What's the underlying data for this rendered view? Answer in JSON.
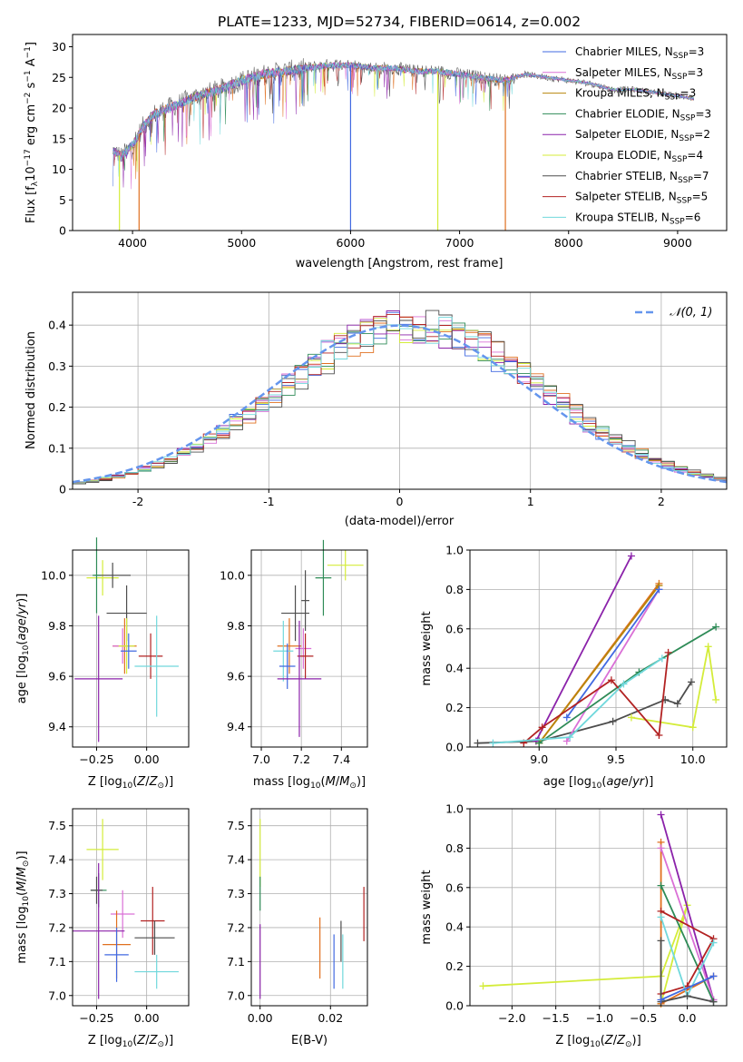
{
  "colors": {
    "chabrier_miles": "#4169e1",
    "salpeter_miles": "#da70d6",
    "kroupa_miles": "#b8860b",
    "chabrier_elodie": "#2e8b57",
    "salpeter_elodie": "#8b22aa",
    "kroupa_elodie": "#d4ec3a",
    "chabrier_stelib": "#4d4d4d",
    "salpeter_stelib": "#b22222",
    "kroupa_stelib": "#70d8dc",
    "orange": "#e07020",
    "normal": "#6495ed"
  },
  "chart_data": [
    {
      "type": "line",
      "title": "PLATE=1233, MJD=52734, FIBERID=0614, z=0.002",
      "xlabel": "wavelength [Angstrom, rest frame]",
      "ylabel": "Flux [fλ10⁻¹⁷ erg cm⁻² s⁻¹ A⁻¹]",
      "xlim": [
        3450,
        9450
      ],
      "ylim": [
        0,
        32
      ],
      "xticks": [
        4000,
        5000,
        6000,
        7000,
        8000,
        9000
      ],
      "yticks": [
        0,
        5,
        10,
        15,
        20,
        25,
        30
      ],
      "grid": false,
      "legend": "upper right",
      "continuum": {
        "x": [
          3820,
          3900,
          4000,
          4100,
          4200,
          4400,
          4600,
          4800,
          5000,
          5200,
          5400,
          5600,
          5800,
          6000,
          6200,
          6400,
          6600,
          6800,
          7000,
          7200,
          7400,
          7600,
          7800,
          8000,
          8200,
          8400,
          8600,
          8800,
          9000,
          9150
        ],
        "y": [
          13,
          12,
          14,
          17,
          19,
          20.5,
          22,
          23,
          24.5,
          25.5,
          26,
          26.5,
          27,
          27,
          26.5,
          26.5,
          26,
          26,
          25.5,
          25,
          24.5,
          25.5,
          25,
          24.5,
          24,
          23,
          23,
          22.5,
          22,
          21.5
        ]
      },
      "series": [
        {
          "name": "Chabrier MILES, N<sub>SSP</sub>=3",
          "color": "chabrier_miles"
        },
        {
          "name": "Salpeter MILES, N<sub>SSP</sub>=3",
          "color": "salpeter_miles"
        },
        {
          "name": "Kroupa MILES, N<sub>SSP</sub>=3",
          "color": "kroupa_miles"
        },
        {
          "name": "Chabrier ELODIE, N<sub>SSP</sub>=3",
          "color": "chabrier_elodie"
        },
        {
          "name": "Salpeter ELODIE, N<sub>SSP</sub>=2",
          "color": "salpeter_elodie"
        },
        {
          "name": "Kroupa ELODIE, N<sub>SSP</sub>=4",
          "color": "kroupa_elodie"
        },
        {
          "name": "Chabrier STELIB, N<sub>SSP</sub>=7",
          "color": "chabrier_stelib"
        },
        {
          "name": "Salpeter STELIB, N<sub>SSP</sub>=5",
          "color": "salpeter_stelib"
        },
        {
          "name": "Kroupa STELIB, N<sub>SSP</sub>=6",
          "color": "kroupa_stelib"
        }
      ],
      "dropouts": [
        {
          "x": 3880,
          "color": "kroupa_elodie"
        },
        {
          "x": 4060,
          "color": "orange"
        },
        {
          "x": 6000,
          "color": "chabrier_miles"
        },
        {
          "x": 6800,
          "color": "kroupa_elodie"
        },
        {
          "x": 7420,
          "color": "orange"
        }
      ]
    },
    {
      "type": "step",
      "xlabel": "(data-model)/error",
      "ylabel": "Normed distribution",
      "xlim": [
        -2.5,
        2.5
      ],
      "ylim": [
        0,
        0.48
      ],
      "xticks": [
        -2,
        -1,
        0,
        1,
        2
      ],
      "yticks": [
        0.0,
        0.1,
        0.2,
        0.3,
        0.4
      ],
      "grid": true,
      "legend": "upper right",
      "legend_label": "𝒩(0, 1)",
      "bin_width": 0.1,
      "hist_colors": [
        "chabrier_miles",
        "salpeter_miles",
        "orange",
        "chabrier_elodie",
        "salpeter_elodie",
        "kroupa_elodie",
        "chabrier_stelib",
        "salpeter_stelib",
        "kroupa_stelib"
      ],
      "normal": {
        "mu": 0,
        "sigma": 1
      }
    },
    {
      "type": "errorbar",
      "xlabel": "Z [log<sub>10</sub>(<i>Z</i>/<i>Z</i><sub>⊙</sub>)]",
      "ylabel": "age  [log<sub>10</sub>(<i>age</i>/<i>yr</i>)]",
      "xlim": [
        -0.37,
        0.21
      ],
      "ylim": [
        9.32,
        10.1
      ],
      "xticks": [
        -0.25,
        0.0
      ],
      "xtick_labels": [
        "−0.25",
        "0.00"
      ],
      "yticks": [
        9.4,
        9.6,
        9.8,
        10.0
      ],
      "ytick_labels": [
        "9.4",
        "9.6",
        "9.8",
        "10.0"
      ],
      "grid": true,
      "points": [
        {
          "x": -0.22,
          "y": 9.99,
          "xerr": 0.08,
          "yerr": 0.07,
          "color": "kroupa_elodie"
        },
        {
          "x": -0.17,
          "y": 10.0,
          "xerr": 0.09,
          "yerr": 0.05,
          "color": "chabrier_stelib"
        },
        {
          "x": -0.25,
          "y": 10.0,
          "xerr": 0.02,
          "yerr": 0.15,
          "color": "chabrier_elodie"
        },
        {
          "x": -0.1,
          "y": 9.85,
          "xerr": 0.1,
          "yerr": 0.11,
          "color": "chabrier_stelib"
        },
        {
          "x": -0.11,
          "y": 9.72,
          "xerr": 0.06,
          "yerr": 0.11,
          "color": "orange"
        },
        {
          "x": -0.12,
          "y": 9.72,
          "xerr": 0.05,
          "yerr": 0.07,
          "color": "salpeter_miles"
        },
        {
          "x": -0.1,
          "y": 9.72,
          "xerr": 0.04,
          "yerr": 0.11,
          "color": "kroupa_elodie"
        },
        {
          "x": 0.02,
          "y": 9.68,
          "xerr": 0.06,
          "yerr": 0.09,
          "color": "salpeter_stelib"
        },
        {
          "x": 0.05,
          "y": 9.64,
          "xerr": 0.11,
          "yerr": 0.2,
          "color": "kroupa_stelib"
        },
        {
          "x": -0.24,
          "y": 9.59,
          "xerr": 0.12,
          "yerr": 0.25,
          "color": "salpeter_elodie"
        },
        {
          "x": -0.09,
          "y": 9.7,
          "xerr": 0.04,
          "yerr": 0.07,
          "color": "chabrier_miles"
        }
      ]
    },
    {
      "type": "errorbar",
      "xlabel": "mass [log<sub>10</sub>(<i>M</i>/<i>M</i><sub>⊙</sub>)]",
      "ylabel": "",
      "xlim": [
        6.95,
        7.53
      ],
      "ylim": [
        9.32,
        10.1
      ],
      "xticks": [
        7.0,
        7.2,
        7.4
      ],
      "xtick_labels": [
        "7.0",
        "7.2",
        "7.4"
      ],
      "yticks": [
        9.4,
        9.6,
        9.8,
        10.0
      ],
      "ytick_labels": [
        "9.4",
        "9.6",
        "9.8",
        "10.0"
      ],
      "grid": true,
      "points": [
        {
          "x": 7.42,
          "y": 10.04,
          "xerr": 0.09,
          "yerr": 0.06,
          "color": "kroupa_elodie"
        },
        {
          "x": 7.31,
          "y": 9.99,
          "xerr": 0.04,
          "yerr": 0.15,
          "color": "chabrier_elodie"
        },
        {
          "x": 7.22,
          "y": 9.9,
          "xerr": 0.02,
          "yerr": 0.12,
          "color": "chabrier_stelib"
        },
        {
          "x": 7.17,
          "y": 9.85,
          "xerr": 0.07,
          "yerr": 0.11,
          "color": "chabrier_stelib"
        },
        {
          "x": 7.14,
          "y": 9.72,
          "xerr": 0.06,
          "yerr": 0.11,
          "color": "orange"
        },
        {
          "x": 7.21,
          "y": 9.71,
          "xerr": 0.04,
          "yerr": 0.08,
          "color": "salpeter_miles"
        },
        {
          "x": 7.22,
          "y": 9.68,
          "xerr": 0.04,
          "yerr": 0.09,
          "color": "salpeter_stelib"
        },
        {
          "x": 7.11,
          "y": 9.7,
          "xerr": 0.05,
          "yerr": 0.12,
          "color": "kroupa_stelib"
        },
        {
          "x": 7.13,
          "y": 9.64,
          "xerr": 0.04,
          "yerr": 0.09,
          "color": "chabrier_miles"
        },
        {
          "x": 7.19,
          "y": 9.59,
          "xerr": 0.11,
          "yerr": 0.23,
          "color": "salpeter_elodie"
        }
      ]
    },
    {
      "type": "line",
      "xlabel": "age  [log<sub>10</sub>(<i>age</i>/<i>yr</i>)]",
      "ylabel": "mass weight",
      "xlim": [
        8.55,
        10.22
      ],
      "ylim": [
        0,
        1
      ],
      "xticks": [
        9.0,
        9.5,
        10.0
      ],
      "xtick_labels": [
        "9.0",
        "9.5",
        "10.0"
      ],
      "yticks": [
        0.0,
        0.2,
        0.4,
        0.6,
        0.8,
        1.0
      ],
      "ytick_labels": [
        "0.0",
        "0.2",
        "0.4",
        "0.6",
        "0.8",
        "1.0"
      ],
      "grid": true,
      "series": [
        {
          "color": "chabrier_stelib",
          "x": [
            8.6,
            9.0,
            9.48,
            9.82,
            9.9,
            9.99
          ],
          "y": [
            0.02,
            0.03,
            0.13,
            0.24,
            0.22,
            0.33
          ]
        },
        {
          "color": "kroupa_elodie",
          "x": [
            9.6,
            10.0,
            10.1,
            10.15
          ],
          "y": [
            0.15,
            0.1,
            0.51,
            0.24
          ]
        },
        {
          "color": "salpeter_elodie",
          "x": [
            8.98,
            9.6
          ],
          "y": [
            0.03,
            0.97
          ]
        },
        {
          "color": "orange",
          "x": [
            9.0,
            9.78
          ],
          "y": [
            0.02,
            0.83
          ]
        },
        {
          "color": "salpeter_miles",
          "x": [
            9.18,
            9.78
          ],
          "y": [
            0.03,
            0.8
          ]
        },
        {
          "color": "kroupa_miles",
          "x": [
            9.0,
            9.78
          ],
          "y": [
            0.02,
            0.82
          ]
        },
        {
          "color": "chabrier_miles",
          "x": [
            9.18,
            9.78
          ],
          "y": [
            0.15,
            0.8
          ]
        },
        {
          "color": "chabrier_elodie",
          "x": [
            9.0,
            9.65,
            10.15
          ],
          "y": [
            0.02,
            0.38,
            0.61
          ]
        },
        {
          "color": "salpeter_stelib",
          "x": [
            8.9,
            9.02,
            9.47,
            9.78,
            9.84
          ],
          "y": [
            0.02,
            0.1,
            0.34,
            0.06,
            0.48
          ]
        },
        {
          "color": "kroupa_stelib",
          "x": [
            8.7,
            9.2,
            9.55,
            9.8
          ],
          "y": [
            0.02,
            0.05,
            0.32,
            0.45
          ]
        }
      ]
    },
    {
      "type": "errorbar",
      "xlabel": "Z [log<sub>10</sub>(<i>Z</i>/<i>Z</i><sub>⊙</sub>)]",
      "ylabel": "mass [log<sub>10</sub>(<i>M</i>/<i>M</i><sub>⊙</sub>)]",
      "xlim": [
        -0.37,
        0.21
      ],
      "ylim": [
        6.97,
        7.55
      ],
      "xticks": [
        -0.25,
        0.0
      ],
      "xtick_labels": [
        "−0.25",
        "0.00"
      ],
      "yticks": [
        7.0,
        7.1,
        7.2,
        7.3,
        7.4,
        7.5
      ],
      "ytick_labels": [
        "7.0",
        "7.1",
        "7.2",
        "7.3",
        "7.4",
        "7.5"
      ],
      "grid": true,
      "points": [
        {
          "x": -0.22,
          "y": 7.43,
          "xerr": 0.08,
          "yerr": 0.09,
          "color": "kroupa_elodie"
        },
        {
          "x": -0.24,
          "y": 7.31,
          "xerr": 0.04,
          "yerr": 0.05,
          "color": "chabrier_elodie"
        },
        {
          "x": -0.25,
          "y": 7.31,
          "xerr": 0.03,
          "yerr": 0.04,
          "color": "chabrier_stelib"
        },
        {
          "x": -0.12,
          "y": 7.24,
          "xerr": 0.06,
          "yerr": 0.07,
          "color": "salpeter_miles"
        },
        {
          "x": 0.03,
          "y": 7.22,
          "xerr": 0.06,
          "yerr": 0.1,
          "color": "salpeter_stelib"
        },
        {
          "x": -0.24,
          "y": 7.19,
          "xerr": 0.13,
          "yerr": 0.2,
          "color": "salpeter_elodie"
        },
        {
          "x": 0.04,
          "y": 7.17,
          "xerr": 0.1,
          "yerr": 0.05,
          "color": "chabrier_stelib"
        },
        {
          "x": -0.15,
          "y": 7.15,
          "xerr": 0.07,
          "yerr": 0.1,
          "color": "orange"
        },
        {
          "x": -0.15,
          "y": 7.12,
          "xerr": 0.06,
          "yerr": 0.08,
          "color": "chabrier_miles"
        },
        {
          "x": 0.05,
          "y": 7.07,
          "xerr": 0.11,
          "yerr": 0.05,
          "color": "kroupa_stelib"
        }
      ]
    },
    {
      "type": "errorbar",
      "xlabel": "E(B-V)",
      "ylabel": "",
      "xlim": [
        -0.0025,
        0.0305
      ],
      "ylim": [
        6.97,
        7.55
      ],
      "xticks": [
        0.0,
        0.02
      ],
      "xtick_labels": [
        "0.00",
        "0.02"
      ],
      "yticks": [
        7.0,
        7.1,
        7.2,
        7.3,
        7.4,
        7.5
      ],
      "ytick_labels": [
        "7.0",
        "7.1",
        "7.2",
        "7.3",
        "7.4",
        "7.5"
      ],
      "grid": true,
      "points": [
        {
          "x": 0.0,
          "y": 7.42,
          "xerr": 0,
          "yerr": 0.1,
          "color": "kroupa_elodie"
        },
        {
          "x": 0.0,
          "y": 7.3,
          "xerr": 0,
          "yerr": 0.05,
          "color": "chabrier_elodie"
        },
        {
          "x": 0.0,
          "y": 7.1,
          "xerr": 0,
          "yerr": 0.11,
          "color": "salpeter_elodie"
        },
        {
          "x": 0.017,
          "y": 7.14,
          "xerr": 0,
          "yerr": 0.09,
          "color": "orange"
        },
        {
          "x": 0.021,
          "y": 7.1,
          "xerr": 0,
          "yerr": 0.08,
          "color": "chabrier_miles"
        },
        {
          "x": 0.023,
          "y": 7.16,
          "xerr": 0,
          "yerr": 0.06,
          "color": "chabrier_stelib"
        },
        {
          "x": 0.0235,
          "y": 7.1,
          "xerr": 0,
          "yerr": 0.08,
          "color": "kroupa_stelib"
        },
        {
          "x": 0.0295,
          "y": 7.24,
          "xerr": 0,
          "yerr": 0.08,
          "color": "salpeter_stelib"
        }
      ]
    },
    {
      "type": "line",
      "xlabel": "Z [log<sub>10</sub>(<i>Z</i>/<i>Z</i><sub>⊙</sub>)]",
      "ylabel": "mass weight",
      "xlim": [
        -2.48,
        0.45
      ],
      "ylim": [
        0,
        1
      ],
      "xticks": [
        -2.0,
        -1.5,
        -1.0,
        -0.5,
        0.0
      ],
      "xtick_labels": [
        "−2.0",
        "−1.5",
        "−1.0",
        "−0.5",
        "0.0"
      ],
      "yticks": [
        0.0,
        0.2,
        0.4,
        0.6,
        0.8,
        1.0
      ],
      "ytick_labels": [
        "0.0",
        "0.2",
        "0.4",
        "0.6",
        "0.8",
        "1.0"
      ],
      "grid": true,
      "series": [
        {
          "color": "kroupa_elodie",
          "x": [
            -2.33,
            -0.3,
            0.0,
            -0.3
          ],
          "y": [
            0.1,
            0.15,
            0.51,
            0.01
          ]
        },
        {
          "color": "salpeter_elodie",
          "x": [
            -0.3,
            0.3
          ],
          "y": [
            0.97,
            0.03
          ]
        },
        {
          "color": "orange",
          "x": [
            -0.3,
            -0.3,
            0.3
          ],
          "y": [
            0.83,
            0.01,
            0.15
          ]
        },
        {
          "color": "salpeter_miles",
          "x": [
            -0.3,
            0.3
          ],
          "y": [
            0.8,
            0.03
          ]
        },
        {
          "color": "chabrier_elodie",
          "x": [
            -0.3,
            0.3
          ],
          "y": [
            0.61,
            0.02
          ]
        },
        {
          "color": "salpeter_stelib",
          "x": [
            -0.3,
            0.0,
            0.3,
            -0.3
          ],
          "y": [
            0.06,
            0.1,
            0.34,
            0.48
          ]
        },
        {
          "color": "kroupa_stelib",
          "x": [
            -0.3,
            0.0,
            0.3
          ],
          "y": [
            0.45,
            0.05,
            0.32
          ]
        },
        {
          "color": "chabrier_stelib",
          "x": [
            -0.3,
            -0.3,
            0.0,
            0.3
          ],
          "y": [
            0.33,
            0.02,
            0.05,
            0.02
          ]
        },
        {
          "color": "chabrier_miles",
          "x": [
            -0.3,
            0.3
          ],
          "y": [
            0.03,
            0.15
          ]
        }
      ]
    }
  ]
}
